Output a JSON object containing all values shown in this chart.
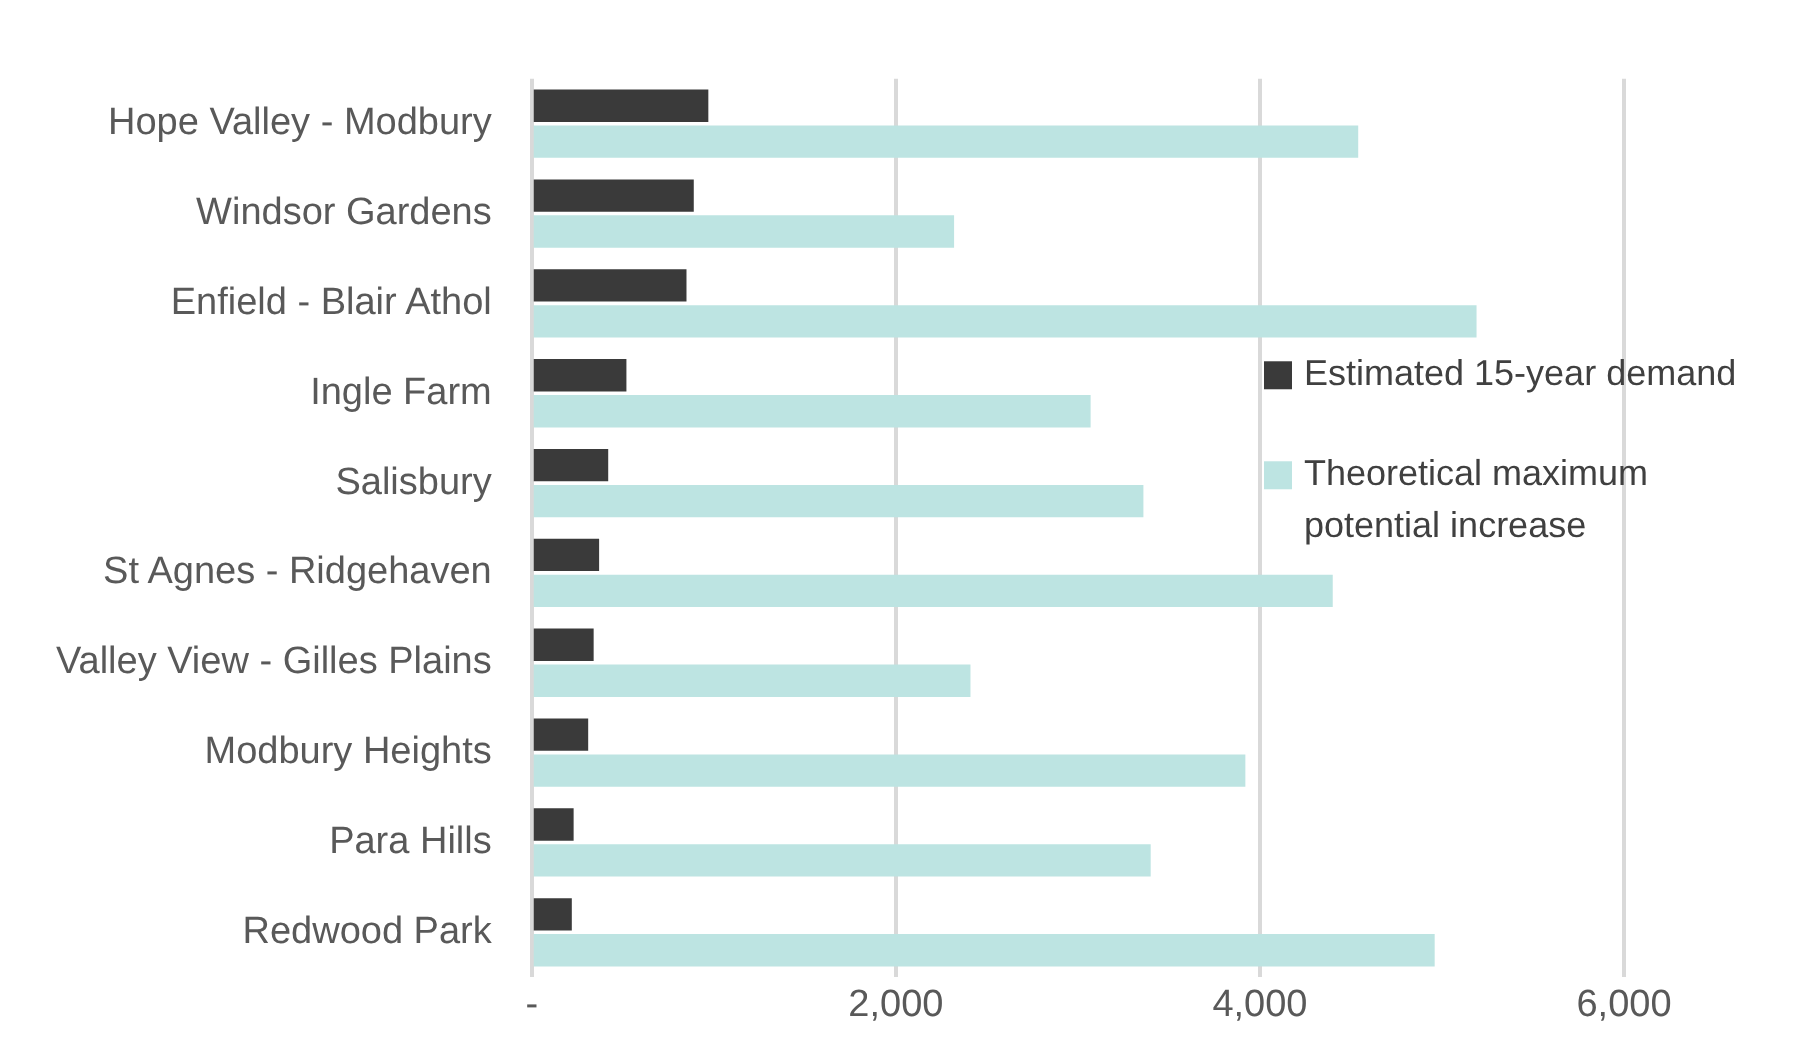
{
  "chart_data": {
    "type": "bar",
    "orientation": "horizontal",
    "categories": [
      "Hope Valley - Modbury",
      "Windsor Gardens",
      "Enfield - Blair Athol",
      "Ingle Farm",
      "Salisbury",
      "St Agnes - Ridgehaven",
      "Valley View - Gilles Plains",
      "Modbury Heights",
      "Para Hills",
      "Redwood Park"
    ],
    "series": [
      {
        "name": "Estimated 15-year demand",
        "color": "#3a3a3a",
        "values": [
          970,
          890,
          850,
          520,
          420,
          370,
          340,
          310,
          230,
          220
        ]
      },
      {
        "name": "Theoretical maximum potential increase",
        "color": "#bde4e2",
        "values": [
          4540,
          2320,
          5190,
          3070,
          3360,
          4400,
          2410,
          3920,
          3400,
          4960
        ]
      }
    ],
    "xlim": [
      0,
      6000
    ],
    "xticks": [
      {
        "value": 0,
        "label": "-"
      },
      {
        "value": 2000,
        "label": "2,000"
      },
      {
        "value": 4000,
        "label": "4,000"
      },
      {
        "value": 6000,
        "label": "6,000"
      }
    ],
    "grid": "x",
    "legend": "right"
  }
}
